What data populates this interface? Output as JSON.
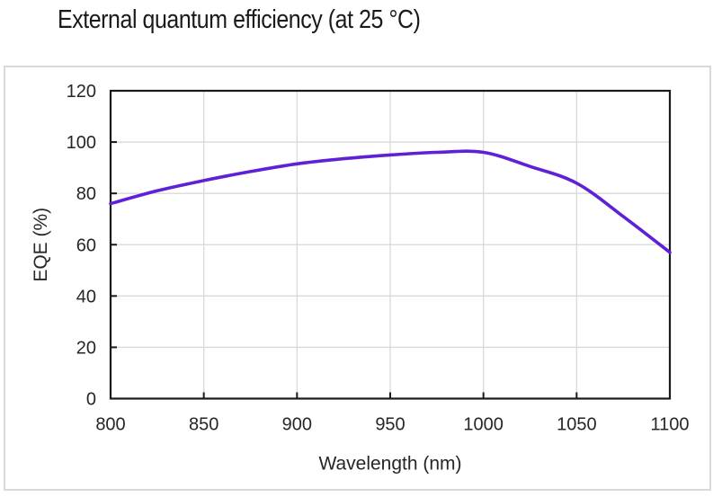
{
  "title": "External quantum efficiency (at 25 °C)",
  "colors": {
    "curve": "#5E21D6",
    "grid": "#d9d9d9",
    "axis": "#1a1a1a",
    "text": "#262626",
    "panel_border": "#d9d9d9",
    "background": "#ffffff"
  },
  "chart_data": {
    "type": "line",
    "title": "External quantum efficiency (at 25 °C)",
    "xlabel": "Wavelength (nm)",
    "ylabel": "EQE (%)",
    "xlim": [
      800,
      1100
    ],
    "ylim": [
      0,
      120
    ],
    "x_ticks": [
      800,
      850,
      900,
      950,
      1000,
      1050,
      1100
    ],
    "y_ticks": [
      0,
      20,
      40,
      60,
      80,
      100,
      120
    ],
    "grid": true,
    "legend": false,
    "series": [
      {
        "name": "EQE",
        "color": "#5E21D6",
        "x": [
          800,
          825,
          850,
          875,
          900,
          925,
          950,
          975,
          1000,
          1025,
          1050,
          1075,
          1100
        ],
        "y": [
          76,
          81,
          85,
          88.5,
          91.5,
          93.5,
          95,
          96,
          96,
          90.5,
          84,
          71,
          57
        ]
      }
    ]
  }
}
